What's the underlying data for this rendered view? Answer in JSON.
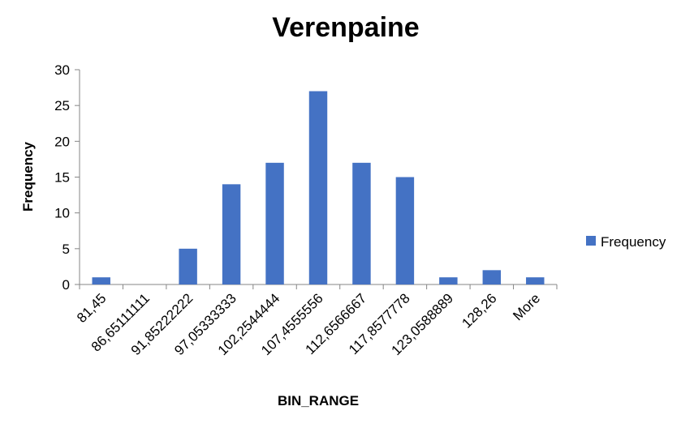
{
  "chart_data": {
    "type": "bar",
    "title": "Verenpaine",
    "xlabel": "BIN_RANGE",
    "ylabel": "Frequency",
    "categories": [
      "81,45",
      "86,65111111",
      "91,85222222",
      "97,05333333",
      "102,2544444",
      "107,4555556",
      "112,6566667",
      "117,8577778",
      "123,0588889",
      "128,26",
      "More"
    ],
    "series": [
      {
        "name": "Frequency",
        "values": [
          1,
          0,
          5,
          14,
          17,
          27,
          17,
          15,
          1,
          2,
          1
        ],
        "color": "#4472C4"
      }
    ],
    "ylim": [
      0,
      30
    ],
    "yticks": [
      0,
      5,
      10,
      15,
      20,
      25,
      30
    ],
    "grid": false,
    "legend_position": "right"
  }
}
